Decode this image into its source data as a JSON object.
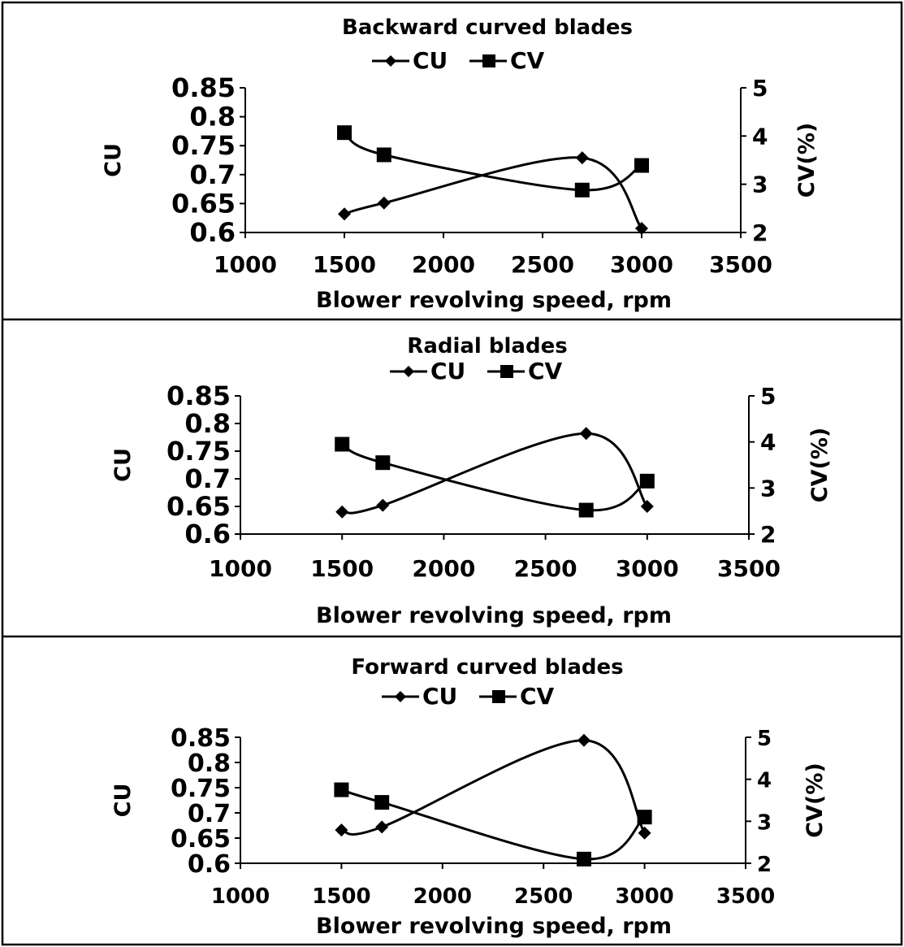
{
  "chart_data": [
    {
      "type": "line",
      "title": "Backward curved blades",
      "xlabel": "Blower revolving speed, rpm",
      "ylabel": "CU",
      "y2label": "CV(%)",
      "xlim": [
        1000,
        3500
      ],
      "xticks": [
        "1000",
        "1500",
        "2000",
        "2500",
        "3000",
        "3500"
      ],
      "ylim": [
        0.6,
        0.85
      ],
      "yticks": [
        "0.85",
        "0.8",
        "0.75",
        "0.7",
        "0.65",
        "0.6"
      ],
      "y2lim": [
        2,
        5
      ],
      "y2ticks": [
        "5",
        "4",
        "3",
        "2"
      ],
      "legend": [
        "CU",
        "CV"
      ],
      "legend_position": "top",
      "grid": false,
      "x": [
        1500,
        1700,
        2700,
        3000
      ],
      "series": [
        {
          "name": "CU",
          "axis": "left",
          "marker": "diamond",
          "values": [
            0.632,
            0.651,
            0.729,
            0.607
          ]
        },
        {
          "name": "CV",
          "axis": "right",
          "marker": "square",
          "values": [
            4.07,
            3.61,
            2.88,
            3.39
          ]
        }
      ]
    },
    {
      "type": "line",
      "title": "Radial blades",
      "xlabel": "Blower revolving speed, rpm",
      "ylabel": "CU",
      "y2label": "CV(%)",
      "xlim": [
        1000,
        3500
      ],
      "xticks": [
        "1000",
        "1500",
        "2000",
        "2500",
        "3000",
        "3500"
      ],
      "ylim": [
        0.6,
        0.85
      ],
      "yticks": [
        "0.85",
        "0.8",
        "0.75",
        "0.7",
        "0.65",
        "0.6"
      ],
      "y2lim": [
        2,
        5
      ],
      "y2ticks": [
        "5",
        "4",
        "3",
        "2"
      ],
      "legend": [
        "CU",
        "CV"
      ],
      "legend_position": "top",
      "grid": false,
      "x": [
        1500,
        1700,
        2700,
        3000
      ],
      "series": [
        {
          "name": "CU",
          "axis": "left",
          "marker": "diamond",
          "values": [
            0.64,
            0.652,
            0.782,
            0.65
          ]
        },
        {
          "name": "CV",
          "axis": "right",
          "marker": "square",
          "values": [
            3.95,
            3.55,
            2.52,
            3.15
          ]
        }
      ]
    },
    {
      "type": "line",
      "title": "Forward curved blades",
      "xlabel": "Blower revolving speed, rpm",
      "ylabel": "CU",
      "y2label": "CV(%)",
      "xlim": [
        1000,
        3500
      ],
      "xticks": [
        "1000",
        "1500",
        "2000",
        "2500",
        "3000",
        "3500"
      ],
      "ylim": [
        0.6,
        0.85
      ],
      "yticks": [
        "0.85",
        "0.8",
        "0.75",
        "0.7",
        "0.65",
        "0.6"
      ],
      "y2lim": [
        2,
        5
      ],
      "y2ticks": [
        "5",
        "4",
        "3",
        "2"
      ],
      "legend": [
        "CU",
        "CV"
      ],
      "legend_position": "top",
      "grid": false,
      "x": [
        1500,
        1700,
        2700,
        3000
      ],
      "series": [
        {
          "name": "CU",
          "axis": "left",
          "marker": "diamond",
          "values": [
            0.666,
            0.672,
            0.844,
            0.66
          ]
        },
        {
          "name": "CV",
          "axis": "right",
          "marker": "square",
          "values": [
            3.75,
            3.45,
            2.1,
            3.1
          ]
        }
      ]
    }
  ]
}
